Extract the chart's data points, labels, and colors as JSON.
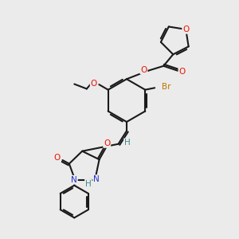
{
  "bg_color": "#ebebeb",
  "bond_color": "#1a1a1a",
  "bond_width": 1.5,
  "O_color": "#ee1100",
  "N_color": "#2233cc",
  "Br_color": "#bb7700",
  "H_color": "#448888",
  "figsize": [
    3.0,
    3.0
  ],
  "dpi": 100,
  "xlim": [
    0,
    10
  ],
  "ylim": [
    0,
    10
  ]
}
